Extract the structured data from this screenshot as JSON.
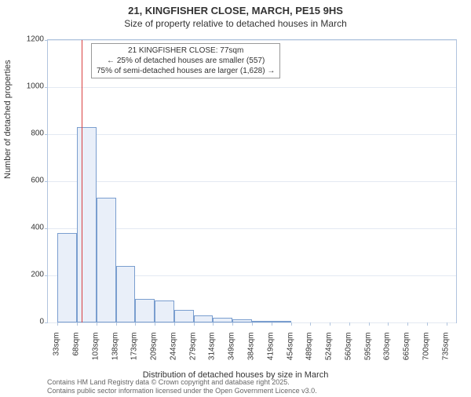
{
  "title_line1": "21, KINGFISHER CLOSE, MARCH, PE15 9HS",
  "title_line2": "Size of property relative to detached houses in March",
  "y_axis_label": "Number of detached properties",
  "x_axis_label": "Distribution of detached houses by size in March",
  "chart": {
    "type": "histogram",
    "ylim": [
      0,
      1200
    ],
    "ytick_step": 200,
    "background_color": "#ffffff",
    "grid_color": "#e3e9f2",
    "border_color": "#b0c4de",
    "bar_fill": "#e9eff9",
    "bar_border": "#7a9ecf",
    "marker_color": "#d94040",
    "marker_value": 77,
    "x_labels": [
      "33sqm",
      "68sqm",
      "103sqm",
      "138sqm",
      "173sqm",
      "209sqm",
      "244sqm",
      "279sqm",
      "314sqm",
      "349sqm",
      "384sqm",
      "419sqm",
      "454sqm",
      "489sqm",
      "524sqm",
      "560sqm",
      "595sqm",
      "630sqm",
      "665sqm",
      "700sqm",
      "735sqm"
    ],
    "bin_edges_sqm": [
      33,
      68,
      103,
      138,
      173,
      209,
      244,
      279,
      314,
      349,
      384,
      419,
      454,
      489,
      524,
      560,
      595,
      630,
      665,
      700,
      735
    ],
    "values": [
      380,
      830,
      530,
      240,
      100,
      95,
      55,
      30,
      20,
      12,
      8,
      5,
      0,
      0,
      0,
      0,
      0,
      0,
      0,
      0
    ],
    "title_fontsize": 13,
    "label_fontsize": 11,
    "tick_fontsize": 10
  },
  "callout": {
    "line1": "21 KINGFISHER CLOSE: 77sqm",
    "line2": "← 25% of detached houses are smaller (557)",
    "line3": "75% of semi-detached houses are larger (1,628) →"
  },
  "footer": {
    "line1": "Contains HM Land Registry data © Crown copyright and database right 2025.",
    "line2": "Contains public sector information licensed under the Open Government Licence v3.0."
  }
}
